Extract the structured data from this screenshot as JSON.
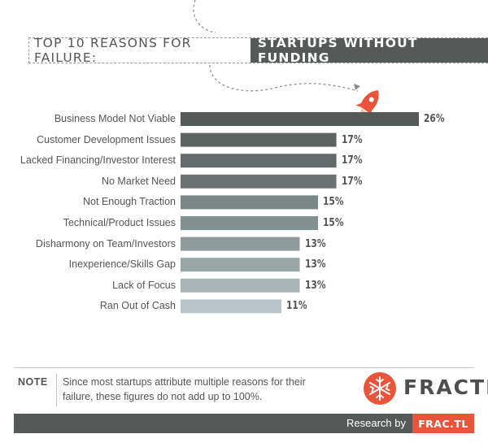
{
  "title": {
    "plain": "TOP 10 REASONS FOR FAILURE:",
    "highlight": "STARTUPS WITHOUT FUNDING"
  },
  "chart_data": {
    "type": "bar",
    "orientation": "horizontal",
    "title": "TOP 10 REASONS FOR FAILURE: STARTUPS WITHOUT FUNDING",
    "categories": [
      "Business Model Not Viable",
      "Customer Development Issues",
      "Lacked Financing/Investor Interest",
      "No Market Need",
      "Not Enough Traction",
      "Technical/Product Issues",
      "Disharmony on Team/Investors",
      "Inexperience/Skills Gap",
      "Lack of Focus",
      "Ran Out of Cash"
    ],
    "values": [
      26,
      17,
      17,
      17,
      15,
      15,
      13,
      13,
      13,
      11
    ],
    "value_labels": [
      "26%",
      "17%",
      "17%",
      "17%",
      "15%",
      "15%",
      "13%",
      "13%",
      "13%",
      "11%"
    ],
    "unit": "%",
    "xlim": [
      0,
      26
    ],
    "grid": false,
    "colors": [
      "#555a58",
      "#5d6361",
      "#636b6a",
      "#6b7372",
      "#7b8686",
      "#84908f",
      "#909c9c",
      "#99a6a6",
      "#a8b4b5",
      "#b7c6c8"
    ]
  },
  "note": {
    "tag": "NOTE",
    "line1": "Since most startups attribute multiple reasons for their",
    "line2": "failure, these figures do not add up to 100%."
  },
  "logo": {
    "text": "FRACTL",
    "color": "#e8553a"
  },
  "footer": {
    "research_label": "Research by",
    "brand": "FRAC.TL",
    "brand_color": "#e8553a"
  }
}
